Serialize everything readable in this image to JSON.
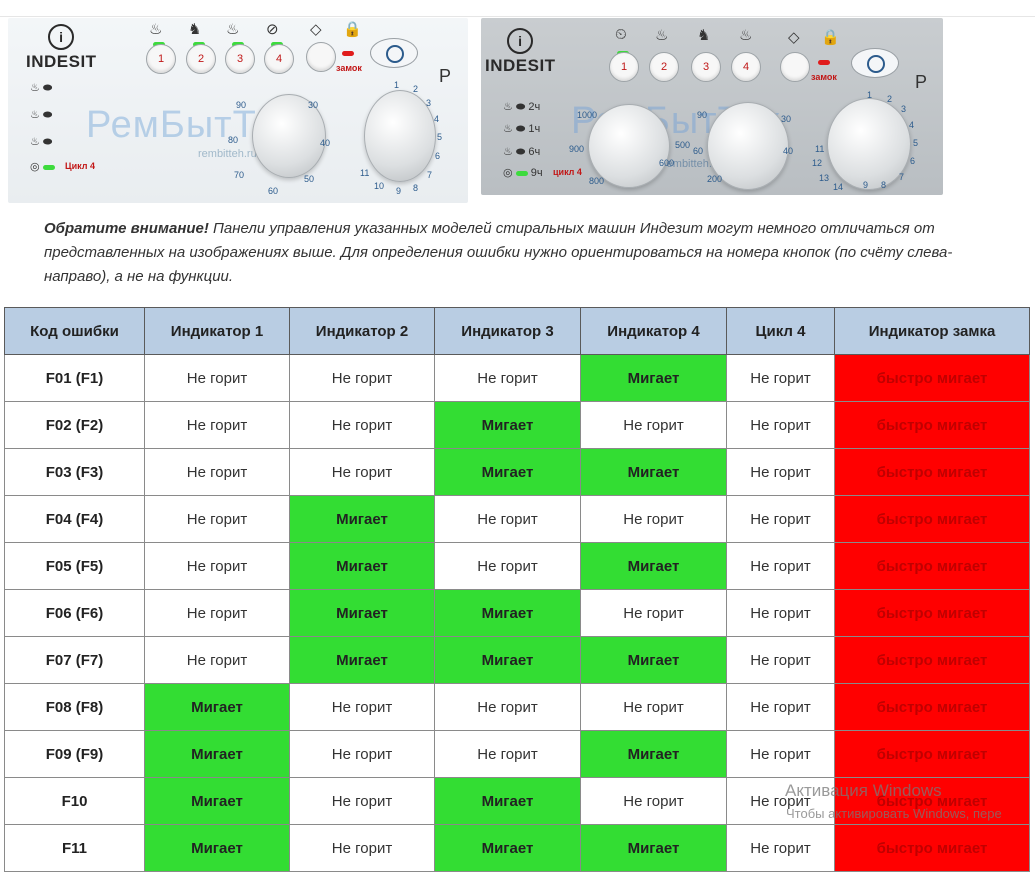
{
  "panel1": {
    "brand": "INDESIT",
    "buttons": [
      "1",
      "2",
      "3",
      "4"
    ],
    "lock_label": "замок",
    "cycle_label": "Цикл 4",
    "program_letter": "P",
    "watermark": "РемБытТех",
    "site": "rembitteh.ru",
    "temp_dial": [
      "90",
      "80",
      "70",
      "60",
      "50",
      "40",
      "30"
    ],
    "prog_dial": [
      "1",
      "2",
      "3",
      "4",
      "5",
      "6",
      "7",
      "8",
      "9",
      "10",
      "11"
    ]
  },
  "panel2": {
    "brand": "INDESIT",
    "buttons": [
      "1",
      "2",
      "3",
      "4"
    ],
    "lock_label": "замок",
    "cycle_label": "цикл 4",
    "program_letter": "P",
    "watermark": "РемБытТех",
    "site": "rembitteh.ru",
    "spin_dial": [
      "1000",
      "900",
      "800",
      "600",
      "500"
    ],
    "temp_dial": [
      "90",
      "60",
      "40",
      "30",
      "200"
    ],
    "prog_dial": [
      "1",
      "2",
      "3",
      "4",
      "5",
      "6",
      "7",
      "8",
      "9",
      "11",
      "12",
      "13",
      "14"
    ],
    "time_labels": [
      "2ч",
      "1ч",
      "6ч",
      "9ч"
    ]
  },
  "note": {
    "bold": "Обратите внимание!",
    "text": " Панели управления указанных моделей стиральных машин Индезит могут немного отличаться от представленных на изображениях выше. Для определения ошибки нужно ориентироваться на номера кнопок (по счёту слева-направо), а не на функции."
  },
  "table": {
    "headers": [
      "Код ошибки",
      "Индикатор 1",
      "Индикатор 2",
      "Индикатор 3",
      "Индикатор 4",
      "Цикл 4",
      "Индикатор замка"
    ],
    "rows": [
      [
        "F01 (F1)",
        "Не горит",
        "Не горит",
        "Не горит",
        "Мигает",
        "Не горит",
        "быстро мигает"
      ],
      [
        "F02 (F2)",
        "Не горит",
        "Не горит",
        "Мигает",
        "Не горит",
        "Не горит",
        "быстро мигает"
      ],
      [
        "F03 (F3)",
        "Не горит",
        "Не горит",
        "Мигает",
        "Мигает",
        "Не горит",
        "быстро мигает"
      ],
      [
        "F04 (F4)",
        "Не горит",
        "Мигает",
        "Не горит",
        "Не горит",
        "Не горит",
        "быстро мигает"
      ],
      [
        "F05 (F5)",
        "Не горит",
        "Мигает",
        "Не горит",
        "Мигает",
        "Не горит",
        "быстро мигает"
      ],
      [
        "F06 (F6)",
        "Не горит",
        "Мигает",
        "Мигает",
        "Не горит",
        "Не горит",
        "быстро мигает"
      ],
      [
        "F07 (F7)",
        "Не горит",
        "Мигает",
        "Мигает",
        "Мигает",
        "Не горит",
        "быстро мигает"
      ],
      [
        "F08 (F8)",
        "Мигает",
        "Не горит",
        "Не горит",
        "Не горит",
        "Не горит",
        "быстро мигает"
      ],
      [
        "F09 (F9)",
        "Мигает",
        "Не горит",
        "Не горит",
        "Мигает",
        "Не горит",
        "быстро мигает"
      ],
      [
        "F10",
        "Мигает",
        "Не горит",
        "Мигает",
        "Не горит",
        "Не горит",
        "быстро мигает"
      ],
      [
        "F11",
        "Мигает",
        "Не горит",
        "Мигает",
        "Мигает",
        "Не горит",
        "быстро мигает"
      ]
    ]
  },
  "colors": {
    "header_bg": "#b9cde3",
    "blink_green": "#33dd33",
    "lock_red": "#ff0000"
  },
  "windows_activation": {
    "title": "Активация Windows",
    "subtitle": "Чтобы активировать Windows, пере"
  }
}
